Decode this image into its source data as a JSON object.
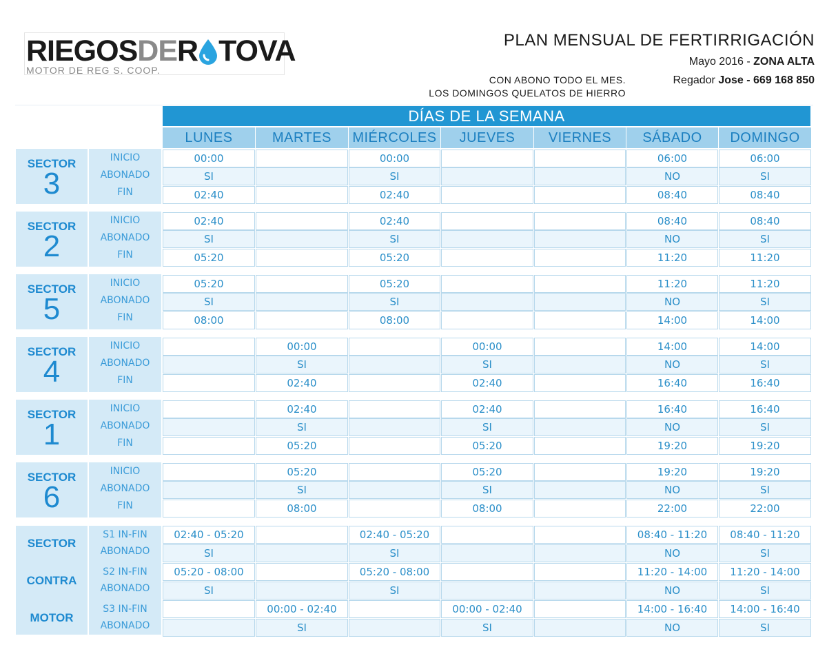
{
  "header": {
    "logo_part1": "RIEGOS",
    "logo_part2": "DE",
    "logo_part3": "R",
    "logo_part4": "TOVA",
    "logo_sub": "MOTOR DE REG S. COOP.",
    "title": "PLAN MENSUAL DE FERTIRRIGACIÓN",
    "period": "Mayo 2016 - ",
    "zone": "ZONA ALTA",
    "regador_prefix": "Regador ",
    "regador": "Jose - 669 168 850",
    "note_line1": "CON ABONO TODO EL MES.",
    "note_line2": "LOS DOMINGOS QUELATOS DE HIERRO"
  },
  "colors": {
    "banner": "#2196d3",
    "day_header": "#9fd0ec",
    "sector_bg": "#d4eaf7",
    "cell_alt": "#eaf5fc",
    "text_blue": "#2b8fc9"
  },
  "table": {
    "banner": "DÍAS DE LA SEMANA",
    "days": [
      "LUNES",
      "MARTES",
      "MIÉRCOLES",
      "JUEVES",
      "VIERNES",
      "SÁBADO",
      "DOMINGO"
    ],
    "row_labels": [
      "INICIO",
      "ABONADO",
      "FIN"
    ],
    "sectors": [
      {
        "label": "SECTOR",
        "number": "3",
        "rows": [
          [
            "00:00",
            "",
            "00:00",
            "",
            "",
            "06:00",
            "06:00"
          ],
          [
            "SI",
            "",
            "SI",
            "",
            "",
            "NO",
            "SI"
          ],
          [
            "02:40",
            "",
            "02:40",
            "",
            "",
            "08:40",
            "08:40"
          ]
        ]
      },
      {
        "label": "SECTOR",
        "number": "2",
        "rows": [
          [
            "02:40",
            "",
            "02:40",
            "",
            "",
            "08:40",
            "08:40"
          ],
          [
            "SI",
            "",
            "SI",
            "",
            "",
            "NO",
            "SI"
          ],
          [
            "05:20",
            "",
            "05:20",
            "",
            "",
            "11:20",
            "11:20"
          ]
        ]
      },
      {
        "label": "SECTOR",
        "number": "5",
        "rows": [
          [
            "05:20",
            "",
            "05:20",
            "",
            "",
            "11:20",
            "11:20"
          ],
          [
            "SI",
            "",
            "SI",
            "",
            "",
            "NO",
            "SI"
          ],
          [
            "08:00",
            "",
            "08:00",
            "",
            "",
            "14:00",
            "14:00"
          ]
        ]
      },
      {
        "label": "SECTOR",
        "number": "4",
        "rows": [
          [
            "",
            "00:00",
            "",
            "00:00",
            "",
            "14:00",
            "14:00"
          ],
          [
            "",
            "SI",
            "",
            "SI",
            "",
            "NO",
            "SI"
          ],
          [
            "",
            "02:40",
            "",
            "02:40",
            "",
            "16:40",
            "16:40"
          ]
        ]
      },
      {
        "label": "SECTOR",
        "number": "1",
        "rows": [
          [
            "",
            "02:40",
            "",
            "02:40",
            "",
            "16:40",
            "16:40"
          ],
          [
            "",
            "SI",
            "",
            "SI",
            "",
            "NO",
            "SI"
          ],
          [
            "",
            "05:20",
            "",
            "05:20",
            "",
            "19:20",
            "19:20"
          ]
        ]
      },
      {
        "label": "SECTOR",
        "number": "6",
        "rows": [
          [
            "",
            "05:20",
            "",
            "05:20",
            "",
            "19:20",
            "19:20"
          ],
          [
            "",
            "SI",
            "",
            "SI",
            "",
            "NO",
            "SI"
          ],
          [
            "",
            "08:00",
            "",
            "08:00",
            "",
            "22:00",
            "22:00"
          ]
        ]
      }
    ],
    "motor": {
      "words": [
        "SECTOR",
        "CONTRA",
        "MOTOR"
      ],
      "labels": [
        "S1 IN-FIN",
        "ABONADO",
        "S2 IN-FIN",
        "ABONADO",
        "S3 IN-FIN",
        "ABONADO"
      ],
      "rows": [
        [
          "02:40 - 05:20",
          "",
          "02:40 - 05:20",
          "",
          "",
          "08:40 - 11:20",
          "08:40 - 11:20"
        ],
        [
          "SI",
          "",
          "SI",
          "",
          "",
          "NO",
          "SI"
        ],
        [
          "05:20 - 08:00",
          "",
          "05:20 - 08:00",
          "",
          "",
          "11:20 - 14:00",
          "11:20 - 14:00"
        ],
        [
          "SI",
          "",
          "SI",
          "",
          "",
          "NO",
          "SI"
        ],
        [
          "",
          "00:00 - 02:40",
          "",
          "00:00 - 02:40",
          "",
          "14:00 - 16:40",
          "14:00 - 16:40"
        ],
        [
          "",
          "SI",
          "",
          "SI",
          "",
          "NO",
          "SI"
        ]
      ]
    }
  }
}
